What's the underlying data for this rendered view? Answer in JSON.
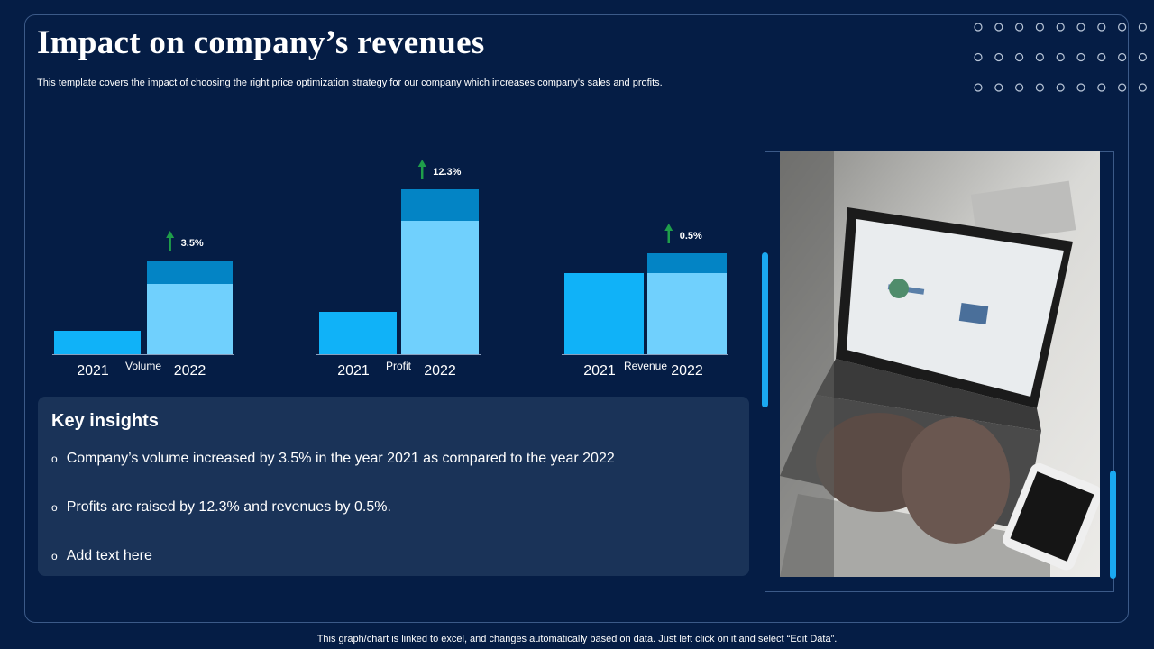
{
  "header": {
    "title": "Impact on company’s revenues",
    "subtitle": "This template covers the impact of choosing the right price optimization strategy for our company which increases company’s sales and profits."
  },
  "chart_data": {
    "type": "bar",
    "groups": [
      {
        "label": "Volume",
        "categories": [
          "2021",
          "2022"
        ],
        "values": [
          26,
          104
        ],
        "increase_segment": 26,
        "change_label": "3.5%"
      },
      {
        "label": "Profit",
        "categories": [
          "2021",
          "2022"
        ],
        "values": [
          47,
          183
        ],
        "increase_segment": 35,
        "change_label": "12.3%"
      },
      {
        "label": "Revenue",
        "categories": [
          "2021",
          "2022"
        ],
        "values": [
          90,
          112
        ],
        "increase_segment": 22,
        "change_label": "0.5%"
      }
    ],
    "colors": {
      "bar_2021": "#10b2f8",
      "bar_2022": "#70d0fd",
      "increase": "#0384c5",
      "arrow": "#1f9e4a",
      "axis": "#8aa0bf"
    }
  },
  "insights": {
    "title": "Key insights",
    "items": [
      "Company’s volume increased by 3.5% in the year 2021 as compared to the year 2022",
      "Profits are raised by 12.3% and revenues by 0.5%.",
      "Add text here"
    ],
    "bullet": "o"
  },
  "footer": {
    "note": "This graph/chart is linked to excel, and changes automatically based on data. Just left click on it and select “Edit Data”."
  },
  "image": {
    "description_icon": "laptop-photo"
  }
}
